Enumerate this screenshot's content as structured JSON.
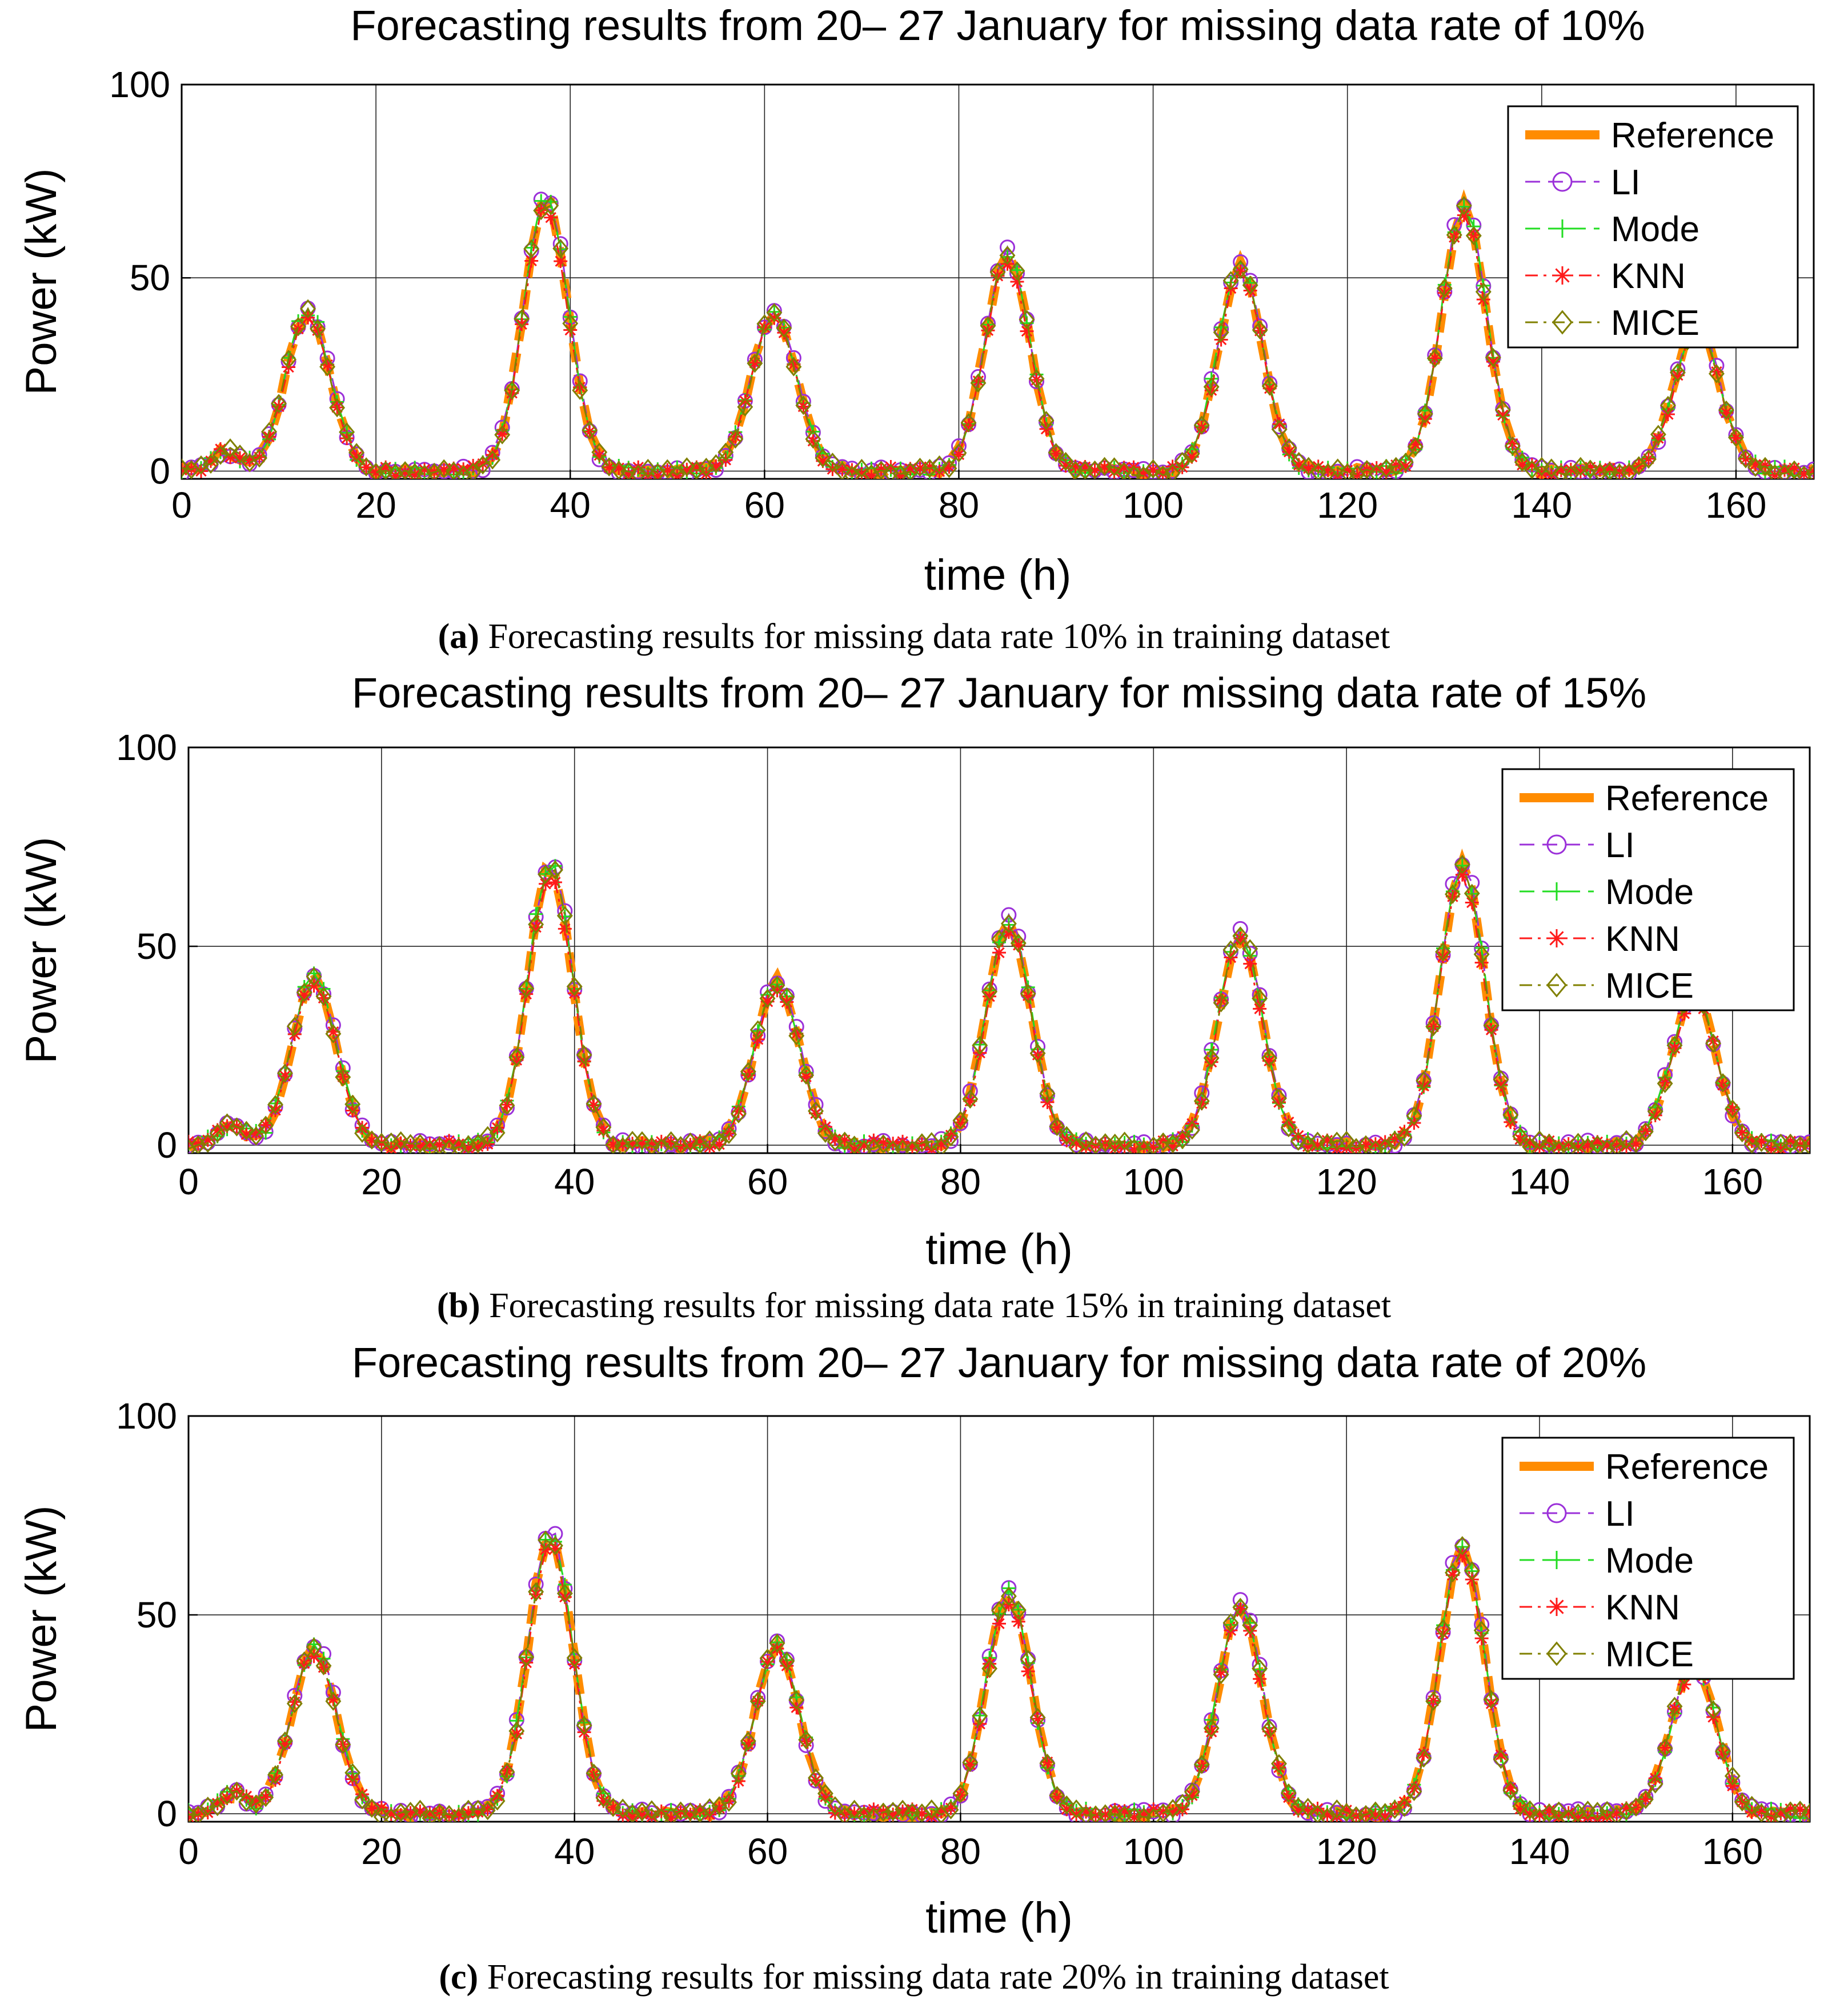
{
  "figure": {
    "captions": [
      {
        "label": "(a)",
        "text": " Forecasting results for missing data rate 10% in training dataset"
      },
      {
        "label": "(b)",
        "text": " Forecasting results for missing data rate 15% in training dataset"
      },
      {
        "label": "(c)",
        "text": " Forecasting results for missing data rate 20% in training dataset"
      }
    ]
  },
  "chart_data": [
    {
      "type": "line",
      "title": "Forecasting results from 20–  27 January for missing data rate of 10%",
      "xlabel": "time (h)",
      "ylabel": "Power (kW)",
      "xlim": [
        0,
        168
      ],
      "ylim": [
        -2,
        100
      ],
      "xticks": [
        0,
        20,
        40,
        60,
        80,
        100,
        120,
        140,
        160
      ],
      "yticks": [
        0,
        50,
        100
      ],
      "grid": true,
      "legend": "top-right",
      "series_names": [
        "Reference",
        "LI",
        "Mode",
        "KNN",
        "MICE"
      ],
      "peaks": [
        [
          13,
          41
        ],
        [
          37.5,
          70
        ],
        [
          61,
          41
        ],
        [
          85,
          56
        ],
        [
          109,
          53
        ],
        [
          132,
          68
        ],
        [
          156,
          38
        ]
      ],
      "x_step": 1,
      "series": [
        {
          "name": "Reference",
          "color": "#FF8C00",
          "style": "dash-thick",
          "marker": "none",
          "values": []
        },
        {
          "name": "LI",
          "color": "#9B30D9",
          "style": "dash",
          "marker": "circle",
          "values": []
        },
        {
          "name": "Mode",
          "color": "#22DD22",
          "style": "dash",
          "marker": "plus",
          "values": []
        },
        {
          "name": "KNN",
          "color": "#FF1A1A",
          "style": "dashdot",
          "marker": "star",
          "values": []
        },
        {
          "name": "MICE",
          "color": "#808000",
          "style": "dashdot",
          "marker": "diamond",
          "values": []
        }
      ]
    },
    {
      "type": "line",
      "title": "Forecasting results from 20–  27 January for missing data rate of 15%",
      "xlabel": "time (h)",
      "ylabel": "Power (kW)",
      "xlim": [
        0,
        168
      ],
      "ylim": [
        -2,
        100
      ],
      "xticks": [
        0,
        20,
        40,
        60,
        80,
        100,
        120,
        140,
        160
      ],
      "yticks": [
        0,
        50,
        100
      ],
      "grid": true,
      "legend": "top-right",
      "series_names": [
        "Reference",
        "LI",
        "Mode",
        "KNN",
        "MICE"
      ],
      "peaks": [
        [
          13,
          42
        ],
        [
          37.5,
          70
        ],
        [
          61,
          41
        ],
        [
          85,
          56
        ],
        [
          109,
          53
        ],
        [
          132,
          70
        ],
        [
          156,
          38
        ]
      ],
      "x_step": 1,
      "series": [
        {
          "name": "Reference",
          "color": "#FF8C00",
          "style": "dash-thick",
          "marker": "none",
          "values": []
        },
        {
          "name": "LI",
          "color": "#9B30D9",
          "style": "dash",
          "marker": "circle",
          "values": []
        },
        {
          "name": "Mode",
          "color": "#22DD22",
          "style": "dash",
          "marker": "plus",
          "values": []
        },
        {
          "name": "KNN",
          "color": "#FF1A1A",
          "style": "dashdot",
          "marker": "star",
          "values": []
        },
        {
          "name": "MICE",
          "color": "#808000",
          "style": "dashdot",
          "marker": "diamond",
          "values": []
        }
      ]
    },
    {
      "type": "line",
      "title": "Forecasting results from 20–  27 January for missing data rate of 20%",
      "xlabel": "time (h)",
      "ylabel": "Power (kW)",
      "xlim": [
        0,
        168
      ],
      "ylim": [
        -2,
        100
      ],
      "xticks": [
        0,
        20,
        40,
        60,
        80,
        100,
        120,
        140,
        160
      ],
      "yticks": [
        0,
        50,
        100
      ],
      "grid": true,
      "legend": "top-right",
      "series_names": [
        "Reference",
        "LI",
        "Mode",
        "KNN",
        "MICE"
      ],
      "peaks": [
        [
          13,
          42
        ],
        [
          37.5,
          70
        ],
        [
          61,
          42
        ],
        [
          85,
          55
        ],
        [
          109,
          52
        ],
        [
          132,
          67
        ],
        [
          156,
          38
        ]
      ],
      "x_step": 1,
      "series": [
        {
          "name": "Reference",
          "color": "#FF8C00",
          "style": "dash-thick",
          "marker": "none",
          "values": []
        },
        {
          "name": "LI",
          "color": "#9B30D9",
          "style": "dash",
          "marker": "circle",
          "values": []
        },
        {
          "name": "Mode",
          "color": "#22DD22",
          "style": "dash",
          "marker": "plus",
          "values": []
        },
        {
          "name": "KNN",
          "color": "#FF1A1A",
          "style": "dashdot",
          "marker": "star",
          "values": []
        },
        {
          "name": "MICE",
          "color": "#808000",
          "style": "dashdot",
          "marker": "diamond",
          "values": []
        }
      ]
    }
  ]
}
